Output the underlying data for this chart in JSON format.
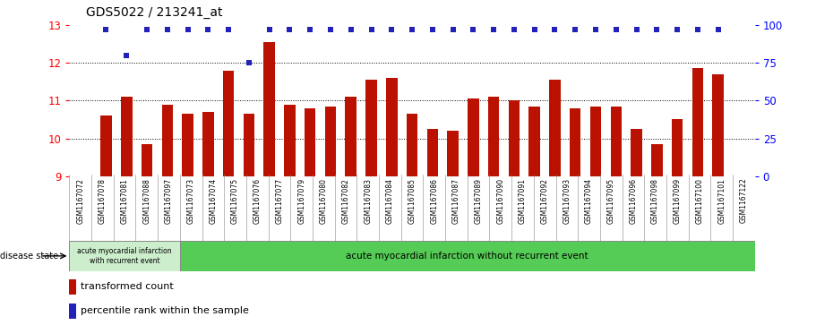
{
  "title": "GDS5022 / 213241_at",
  "samples": [
    "GSM1167072",
    "GSM1167078",
    "GSM1167081",
    "GSM1167088",
    "GSM1167097",
    "GSM1167073",
    "GSM1167074",
    "GSM1167075",
    "GSM1167076",
    "GSM1167077",
    "GSM1167079",
    "GSM1167080",
    "GSM1167082",
    "GSM1167083",
    "GSM1167084",
    "GSM1167085",
    "GSM1167086",
    "GSM1167087",
    "GSM1167089",
    "GSM1167090",
    "GSM1167091",
    "GSM1167092",
    "GSM1167093",
    "GSM1167094",
    "GSM1167095",
    "GSM1167096",
    "GSM1167098",
    "GSM1167099",
    "GSM1167100",
    "GSM1167101",
    "GSM1167122"
  ],
  "bar_values": [
    10.6,
    11.1,
    9.85,
    10.9,
    10.65,
    10.7,
    11.8,
    10.65,
    12.55,
    10.9,
    10.8,
    10.85,
    11.1,
    11.55,
    11.6,
    10.65,
    10.25,
    10.2,
    11.05,
    11.1,
    11.0,
    10.85,
    11.55,
    10.8,
    10.85,
    10.85,
    10.25,
    9.85,
    10.5,
    11.85,
    11.7
  ],
  "percentile_values": [
    97,
    80,
    97,
    97,
    97,
    97,
    97,
    75,
    97,
    97,
    97,
    97,
    97,
    97,
    97,
    97,
    97,
    97,
    97,
    97,
    97,
    97,
    97,
    97,
    97,
    97,
    97,
    97,
    97,
    97,
    97
  ],
  "ylim_left": [
    9,
    13
  ],
  "ylim_right": [
    0,
    100
  ],
  "yticks_left": [
    9,
    10,
    11,
    12,
    13
  ],
  "yticks_right": [
    0,
    25,
    50,
    75,
    100
  ],
  "bar_color": "#bb1100",
  "dot_color": "#2222bb",
  "group0_label": "acute myocardial infarction\nwith recurrent event",
  "group0_count": 5,
  "group1_label": "acute myocardial infarction without recurrent event",
  "group1_count": 26,
  "group0_color": "#cceecc",
  "group1_color": "#55cc55",
  "disease_state_text": "disease state",
  "legend_bar": "transformed count",
  "legend_dot": "percentile rank within the sample",
  "grid_yticks": [
    10,
    11,
    12
  ],
  "xtick_bg_color": "#bbbbbb",
  "border_color": "#888888"
}
